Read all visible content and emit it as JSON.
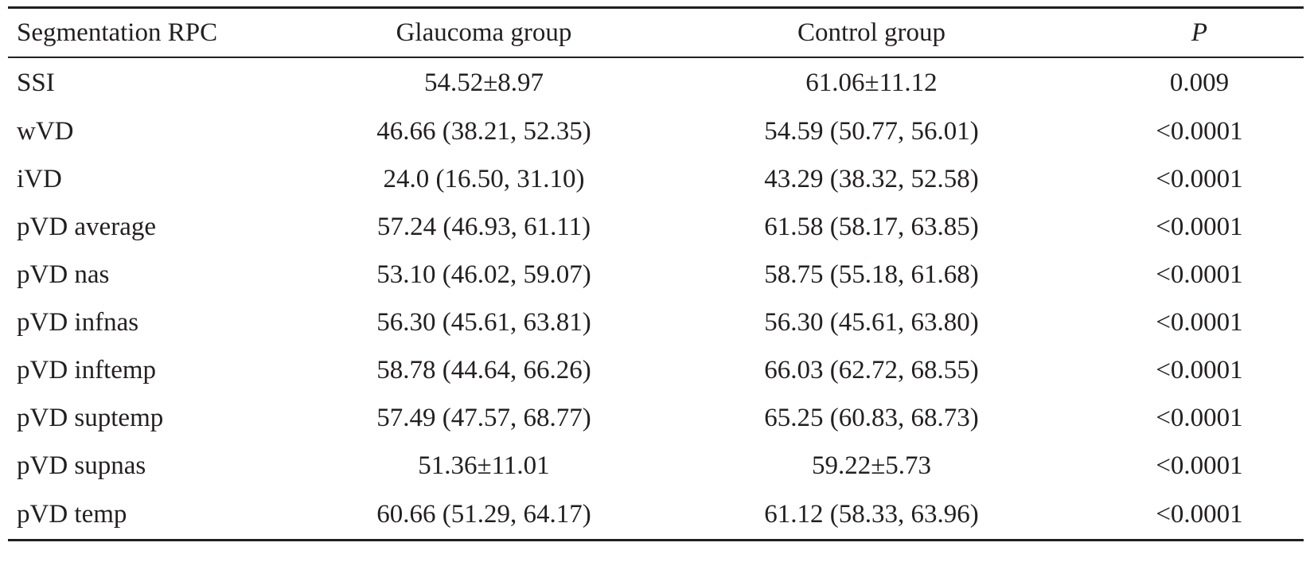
{
  "table": {
    "headers": [
      "Segmentation RPC",
      "Glaucoma group",
      "Control group",
      "P"
    ],
    "rows": [
      [
        "SSI",
        "54.52±8.97",
        "61.06±11.12",
        "0.009"
      ],
      [
        "wVD",
        "46.66 (38.21, 52.35)",
        "54.59 (50.77, 56.01)",
        "<0.0001"
      ],
      [
        "iVD",
        "24.0 (16.50, 31.10)",
        "43.29 (38.32, 52.58)",
        "<0.0001"
      ],
      [
        "pVD average",
        "57.24 (46.93, 61.11)",
        "61.58 (58.17, 63.85)",
        "<0.0001"
      ],
      [
        "pVD nas",
        "53.10 (46.02, 59.07)",
        "58.75 (55.18, 61.68)",
        "<0.0001"
      ],
      [
        "pVD infnas",
        "56.30 (45.61, 63.81)",
        "56.30 (45.61, 63.80)",
        "<0.0001"
      ],
      [
        "pVD inftemp",
        "58.78 (44.64, 66.26)",
        "66.03 (62.72, 68.55)",
        "<0.0001"
      ],
      [
        "pVD suptemp",
        "57.49 (47.57, 68.77)",
        "65.25 (60.83, 68.73)",
        "<0.0001"
      ],
      [
        "pVD supnas",
        "51.36±11.01",
        "59.22±5.73",
        "<0.0001"
      ],
      [
        "pVD temp",
        "60.66 (51.29, 64.17)",
        "61.12 (58.33, 63.96)",
        "<0.0001"
      ]
    ]
  }
}
